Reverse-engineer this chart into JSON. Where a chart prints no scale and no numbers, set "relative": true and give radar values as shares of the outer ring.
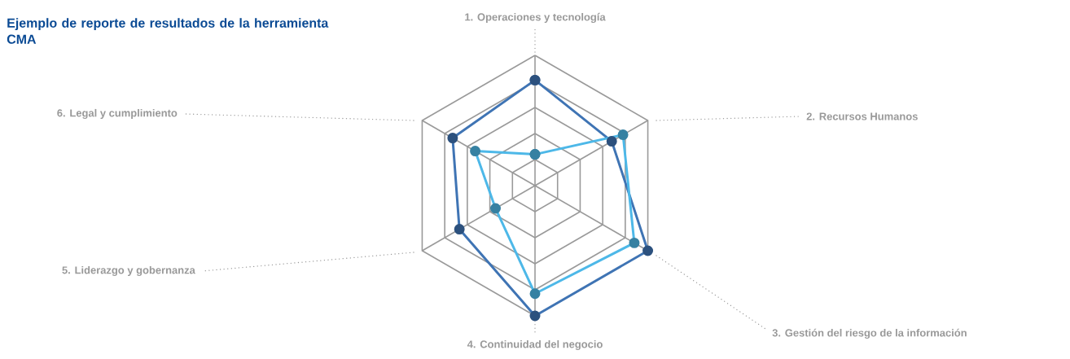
{
  "chart_data": {
    "type": "radar",
    "title": "Ejemplo de reporte de resultados de la herramienta CMA",
    "relative": true,
    "marker": "circle",
    "categories": [
      "1. Operaciones y tecnología",
      "2. Recursos Humanos",
      "3. Gestión del riesgo de la información",
      "4. Continuidad del negocio",
      "5. Liderazgo y gobernanza",
      "6. Legal y cumplimiento"
    ],
    "series": [
      {
        "color": "#3f74b4",
        "values": [
          0.81,
          0.68,
          1.0,
          1.0,
          0.67,
          0.73
        ]
      },
      {
        "color": "#4db8e8",
        "values": [
          0.24,
          0.78,
          0.88,
          0.83,
          0.35,
          0.53
        ]
      }
    ]
  }
}
